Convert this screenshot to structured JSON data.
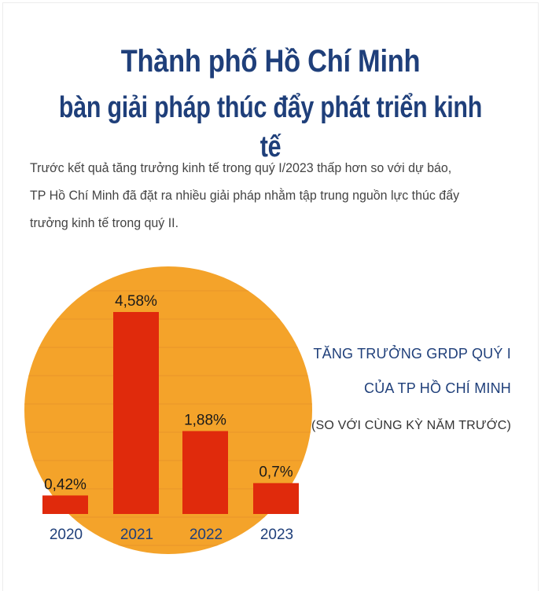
{
  "header": {
    "title_line1": "Thành phố Hồ Chí Minh",
    "title_line2": "bàn giải pháp thúc đẩy phát triển kinh tế"
  },
  "intro": {
    "lines": [
      "Trước kết quả tăng trưởng kinh tế trong quý I/2023 thấp hơn so với dự báo,",
      "TP Hồ Chí Minh đã đặt ra nhiều giải pháp nhằm tập trung nguồn lực thúc đẩy",
      "trưởng kinh tế trong quý II."
    ]
  },
  "caption": {
    "line1": "TĂNG TRƯỞNG GRDP QUÝ I",
    "line2": "CỦA TP HỒ CHÍ MINH",
    "line3": "(SO VỚI CÙNG KỲ NĂM TRƯỚC)"
  },
  "colors": {
    "title": "#1f3f7a",
    "bar": "#e02a0c",
    "circle": "#f4a32a",
    "circle_lines": "#e8952a"
  },
  "chart_data": {
    "type": "bar",
    "categories": [
      "2020",
      "2021",
      "2022",
      "2023"
    ],
    "values": [
      0.42,
      4.58,
      1.88,
      0.7
    ],
    "data_labels": [
      "0,42%",
      "4,58%",
      "1,88%",
      "0,7%"
    ],
    "title": "TĂNG TRƯỞNG GRDP QUÝ I CỦA TP HỒ CHÍ MINH",
    "subtitle": "(SO VỚI CÙNG KỲ NĂM TRƯỚC)",
    "unit": "%",
    "ylim": [
      0,
      5
    ],
    "grid": false,
    "legend": "none"
  }
}
